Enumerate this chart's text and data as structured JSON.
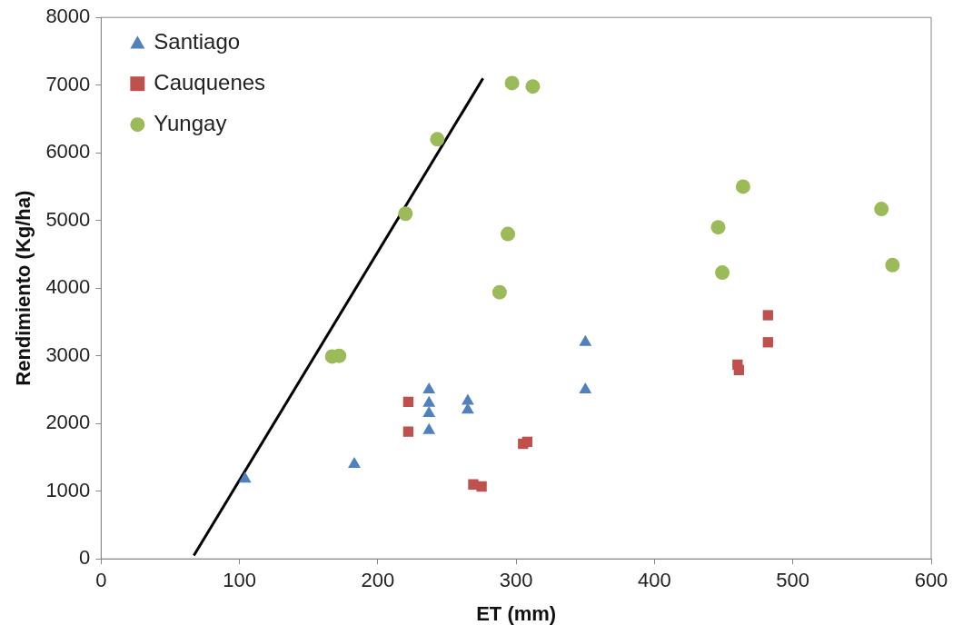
{
  "chart_data": {
    "type": "scatter",
    "xlabel": "ET (mm)",
    "ylabel": "Rendimiento (Kg/ha)",
    "xlim": [
      0,
      600
    ],
    "xticks": [
      0,
      100,
      200,
      300,
      400,
      500,
      600
    ],
    "ylim": [
      0,
      8000
    ],
    "yticks": [
      0,
      1000,
      2000,
      3000,
      4000,
      5000,
      6000,
      7000,
      8000
    ],
    "grid": false,
    "legend": "top left",
    "series": [
      {
        "name": "Santiago",
        "color": "#4f81bd",
        "marker": "triangle",
        "x": [
          104,
          183,
          237,
          237,
          237,
          237,
          265,
          265,
          350,
          350
        ],
        "values": [
          1180,
          1400,
          2500,
          2300,
          2150,
          1900,
          2330,
          2200,
          3200,
          2500
        ]
      },
      {
        "name": "Cauquenes",
        "color": "#c0504d",
        "marker": "square",
        "x": [
          222,
          222,
          269,
          275,
          305,
          308,
          460,
          461,
          482,
          482
        ],
        "values": [
          2320,
          1880,
          1100,
          1070,
          1700,
          1730,
          2870,
          2790,
          3600,
          3200
        ]
      },
      {
        "name": "Yungay",
        "color": "#9bbb59",
        "marker": "circle",
        "x": [
          167,
          172,
          220,
          243,
          297,
          312,
          294,
          288,
          446,
          464,
          449,
          564,
          572
        ],
        "values": [
          2990,
          3000,
          5100,
          6200,
          7030,
          6980,
          4800,
          3940,
          4900,
          5500,
          4230,
          5170,
          4340
        ]
      },
      {
        "type": "line",
        "color": "#000000",
        "marker": "none",
        "x": [
          67,
          276
        ],
        "values": [
          50,
          7100
        ]
      }
    ]
  }
}
